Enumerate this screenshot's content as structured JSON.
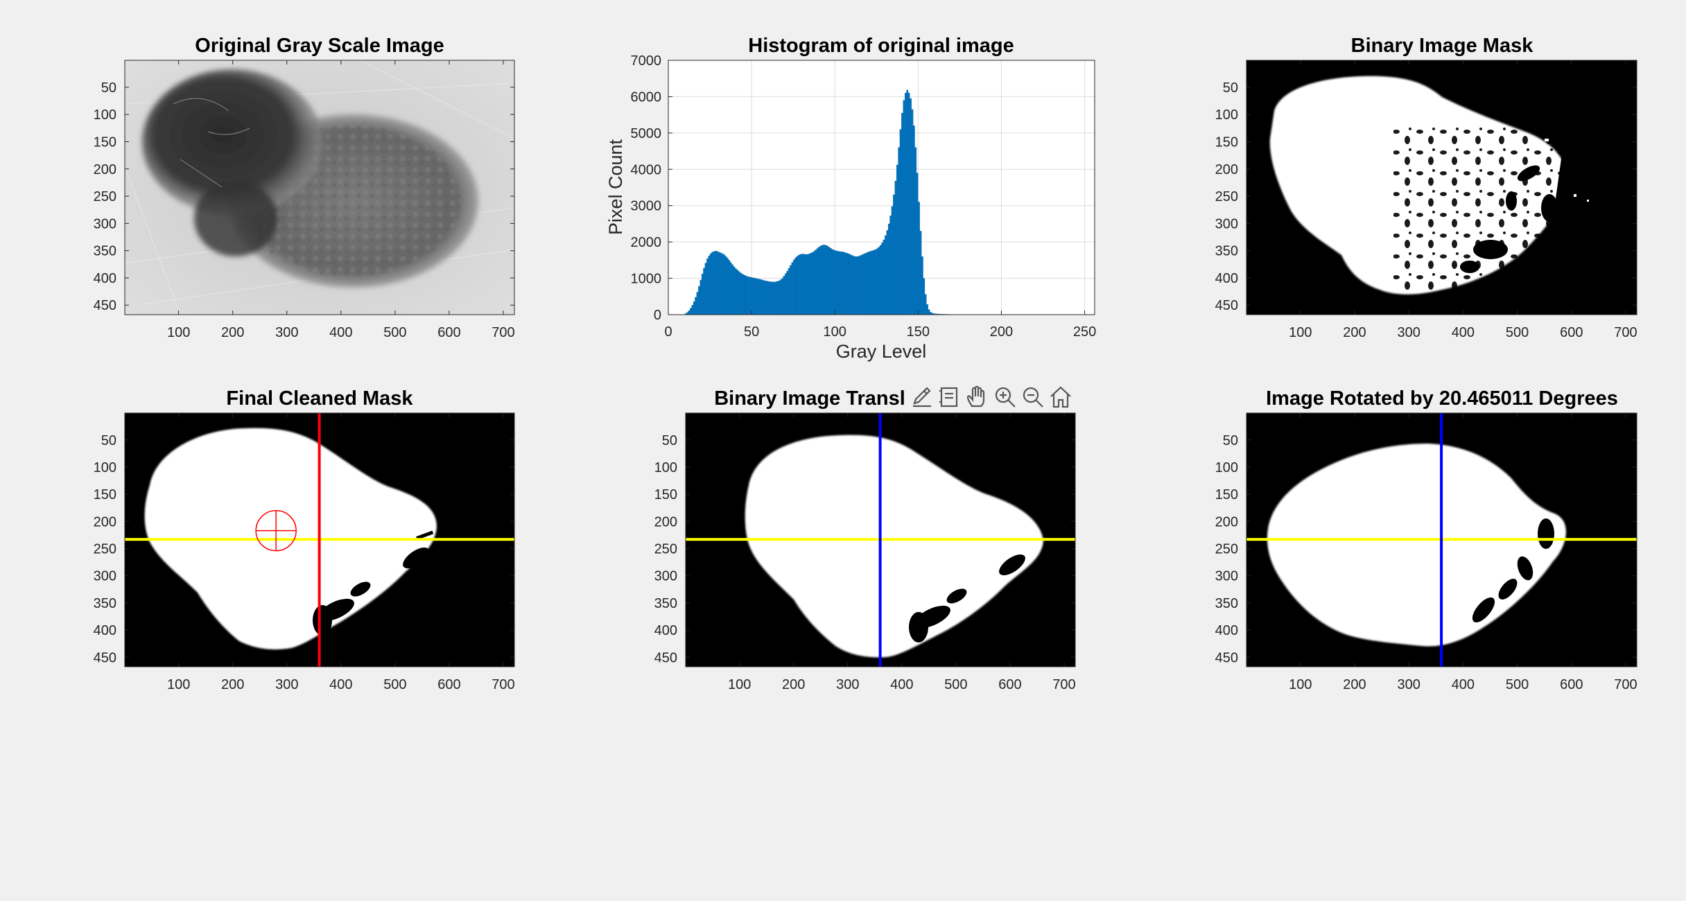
{
  "figure": {
    "background": "#f0f0f0"
  },
  "toolbar": {
    "icons": [
      "brush-icon",
      "datatip-icon",
      "pan-hand-icon",
      "zoom-in-icon",
      "zoom-out-icon",
      "home-icon"
    ]
  },
  "panels": [
    {
      "id": "gray",
      "title": "Original Gray Scale Image",
      "kind": "image",
      "image": "grayscale photograph of skin lesion",
      "xticks": [
        100,
        200,
        300,
        400,
        500,
        600,
        700
      ],
      "yticks": [
        50,
        100,
        150,
        200,
        250,
        300,
        350,
        400,
        450
      ],
      "xlim": [
        0.5,
        720.5
      ],
      "ylim": [
        0.5,
        467.5
      ]
    },
    {
      "id": "histogram",
      "title": "Histogram of original image",
      "kind": "chart",
      "xticks": [
        0,
        50,
        100,
        150,
        200,
        250
      ],
      "yticks": [
        0,
        1000,
        2000,
        3000,
        4000,
        5000,
        6000,
        7000
      ]
    },
    {
      "id": "binary",
      "title": "Binary Image Mask",
      "kind": "image",
      "image": "binary mask of lesion",
      "xticks": [
        100,
        200,
        300,
        400,
        500,
        600,
        700
      ],
      "yticks": [
        50,
        100,
        150,
        200,
        250,
        300,
        350,
        400,
        450
      ],
      "xlim": [
        0.5,
        720.5
      ],
      "ylim": [
        0.5,
        467.5
      ]
    },
    {
      "id": "cleaned",
      "title": "Final Cleaned Mask",
      "kind": "image",
      "image": "cleaned binary mask with centroid marker and axes lines",
      "xticks": [
        100,
        200,
        300,
        400,
        500,
        600,
        700
      ],
      "yticks": [
        50,
        100,
        150,
        200,
        250,
        300,
        350,
        400,
        450
      ],
      "xlim": [
        0.5,
        720.5
      ],
      "ylim": [
        0.5,
        467.5
      ],
      "centroid": {
        "x": 280,
        "y": 217,
        "color": "#ff0000"
      },
      "hline": {
        "y": 233,
        "color": "#ffff00"
      },
      "vline": {
        "x": 360,
        "color": "#ff0000"
      }
    },
    {
      "id": "translated",
      "title": "Binary Image Transl",
      "kind": "image",
      "image": "translated binary mask",
      "xticks": [
        100,
        200,
        300,
        400,
        500,
        600,
        700
      ],
      "yticks": [
        50,
        100,
        150,
        200,
        250,
        300,
        350,
        400,
        450
      ],
      "xlim": [
        0.5,
        720.5
      ],
      "ylim": [
        0.5,
        467.5
      ],
      "hline": {
        "y": 233,
        "color": "#ffff00"
      },
      "vline": {
        "x": 360,
        "color": "#0000ff"
      }
    },
    {
      "id": "rotated",
      "title": "Image Rotated by 20.465011 Degrees",
      "kind": "image",
      "image": "rotated binary mask",
      "xticks": [
        100,
        200,
        300,
        400,
        500,
        600,
        700
      ],
      "yticks": [
        50,
        100,
        150,
        200,
        250,
        300,
        350,
        400,
        450
      ],
      "xlim": [
        0.5,
        720.5
      ],
      "ylim": [
        0.5,
        467.5
      ],
      "hline": {
        "y": 233,
        "color": "#ffff00"
      },
      "vline": {
        "x": 360,
        "color": "#0000ff"
      }
    }
  ],
  "chart_data": {
    "type": "bar",
    "title": "Histogram of original image",
    "xlabel": "Gray Level",
    "ylabel": "Pixel Count",
    "xlim": [
      0,
      256
    ],
    "ylim": [
      0,
      7000
    ],
    "grid": true,
    "bar_color": "#0072bd",
    "x_start": 0,
    "values": [
      0,
      0,
      0,
      0,
      0,
      0,
      0,
      0,
      0,
      0,
      30,
      60,
      110,
      180,
      260,
      360,
      480,
      620,
      780,
      950,
      1120,
      1280,
      1420,
      1540,
      1620,
      1680,
      1720,
      1740,
      1750,
      1740,
      1720,
      1700,
      1680,
      1650,
      1610,
      1560,
      1500,
      1440,
      1380,
      1320,
      1270,
      1230,
      1190,
      1150,
      1120,
      1090,
      1070,
      1050,
      1040,
      1030,
      1020,
      1010,
      1000,
      990,
      980,
      970,
      955,
      940,
      930,
      920,
      910,
      905,
      900,
      900,
      905,
      915,
      930,
      960,
      1000,
      1060,
      1130,
      1200,
      1280,
      1360,
      1440,
      1510,
      1570,
      1610,
      1640,
      1660,
      1670,
      1665,
      1660,
      1660,
      1670,
      1690,
      1710,
      1740,
      1780,
      1820,
      1860,
      1890,
      1910,
      1920,
      1910,
      1890,
      1860,
      1830,
      1800,
      1780,
      1760,
      1750,
      1740,
      1735,
      1730,
      1720,
      1700,
      1690,
      1670,
      1650,
      1630,
      1610,
      1600,
      1600,
      1610,
      1630,
      1650,
      1670,
      1690,
      1710,
      1730,
      1745,
      1760,
      1775,
      1790,
      1820,
      1860,
      1910,
      1980,
      2060,
      2180,
      2320,
      2500,
      2720,
      2980,
      3300,
      3680,
      4120,
      4600,
      5100,
      5550,
      5900,
      6100,
      6180,
      6100,
      5950,
      5650,
      5200,
      4600,
      3900,
      3100,
      2300,
      1600,
      1000,
      560,
      280,
      140,
      70,
      40,
      30,
      25,
      20,
      18,
      16,
      14,
      12,
      10,
      9,
      8,
      7,
      6,
      5,
      4,
      3,
      2,
      1,
      0,
      0,
      0,
      0,
      0,
      0,
      0,
      0,
      0,
      0,
      0,
      0,
      0,
      0,
      0,
      0,
      0,
      0,
      0,
      0,
      0,
      0,
      0,
      0,
      0,
      0,
      0,
      0,
      0,
      0,
      0,
      0,
      0,
      0,
      0,
      0,
      0,
      0,
      0,
      0,
      0,
      0,
      0,
      0,
      0,
      0,
      0,
      0,
      0,
      0,
      0,
      0,
      0,
      0,
      0,
      0,
      0,
      0,
      0,
      0,
      0,
      0,
      0,
      0,
      0,
      0,
      0,
      0,
      0,
      0,
      0,
      0,
      0,
      0,
      0,
      0,
      0,
      0,
      0,
      0,
      0,
      0,
      0,
      0,
      0,
      0,
      0,
      0,
      0,
      0,
      0,
      0,
      0,
      0,
      0,
      0,
      0
    ]
  }
}
